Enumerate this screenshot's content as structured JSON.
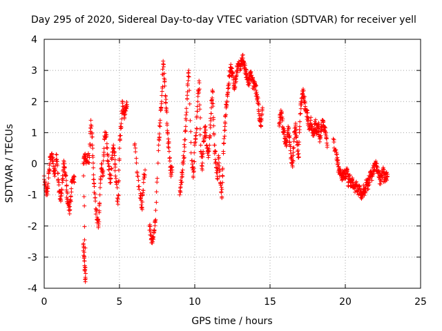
{
  "chart_data": {
    "type": "scatter",
    "title": "Day 295 of 2020, Sidereal Day-to-day VTEC variation (SDTVAR) for receiver yell",
    "xlabel": "GPS time / hours",
    "ylabel": "SDTVAR / TECUs",
    "xlim": [
      0,
      25
    ],
    "ylim": [
      -4,
      4
    ],
    "grid": true,
    "marker": "+",
    "marker_color": "#ff0000",
    "x_ticks": [
      0,
      5,
      10,
      15,
      20,
      25
    ],
    "x_tick_labels": [
      "0",
      "5",
      "10",
      "15",
      "20",
      "25"
    ],
    "y_ticks": [
      -4,
      -3,
      -2,
      -1,
      0,
      1,
      2,
      3,
      4
    ],
    "y_tick_labels": [
      "-4",
      "-3",
      "-2",
      "-1",
      "0",
      "1",
      "2",
      "3",
      "4"
    ],
    "series": [
      {
        "name": "SDTVAR",
        "segments": [
          [
            0.0,
            -0.5
          ],
          [
            0.1,
            -0.8
          ],
          [
            0.2,
            -1.0
          ],
          [
            0.3,
            -0.3
          ],
          [
            0.4,
            0.2
          ],
          [
            0.5,
            0.3
          ],
          [
            0.6,
            0.0
          ],
          [
            0.7,
            -0.4
          ],
          [
            0.8,
            0.3
          ],
          [
            0.9,
            -0.3
          ],
          [
            1.0,
            -0.9
          ],
          [
            1.1,
            -1.2
          ],
          [
            1.2,
            -0.6
          ],
          [
            1.3,
            0.1
          ],
          [
            1.4,
            -0.3
          ],
          [
            1.5,
            -0.9
          ],
          [
            1.6,
            -1.3
          ],
          [
            1.7,
            -1.5
          ],
          [
            1.8,
            -0.8
          ],
          [
            1.9,
            -0.5
          ],
          [
            2.0,
            -0.6
          ],
          [
            2.6,
            -2.6
          ],
          [
            2.65,
            -3.0
          ],
          [
            2.7,
            -3.4
          ],
          [
            2.75,
            -3.7
          ],
          [
            2.6,
            0.0
          ],
          [
            2.7,
            0.3
          ],
          [
            2.8,
            0.1
          ],
          [
            3.0,
            0.2
          ],
          [
            3.1,
            1.4
          ],
          [
            3.2,
            0.6
          ],
          [
            3.3,
            -0.5
          ],
          [
            3.4,
            -1.2
          ],
          [
            3.5,
            -1.8
          ],
          [
            3.6,
            -2.0
          ],
          [
            3.7,
            -1.0
          ],
          [
            3.8,
            0.0
          ],
          [
            3.9,
            -0.4
          ],
          [
            4.0,
            0.8
          ],
          [
            4.1,
            1.0
          ],
          [
            4.2,
            0.3
          ],
          [
            4.3,
            -0.2
          ],
          [
            4.4,
            -0.6
          ],
          [
            4.5,
            0.2
          ],
          [
            4.6,
            0.6
          ],
          [
            4.7,
            0.0
          ],
          [
            4.8,
            -0.6
          ],
          [
            4.9,
            -1.3
          ],
          [
            5.0,
            0.5
          ],
          [
            5.1,
            1.2
          ],
          [
            5.2,
            2.0
          ],
          [
            5.3,
            1.6
          ],
          [
            5.4,
            1.7
          ],
          [
            5.5,
            1.9
          ],
          [
            6.0,
            0.6
          ],
          [
            6.2,
            -0.4
          ],
          [
            6.4,
            -1.1
          ],
          [
            6.5,
            -1.4
          ],
          [
            6.6,
            -0.6
          ],
          [
            6.7,
            -0.2
          ],
          [
            7.0,
            -2.0
          ],
          [
            7.1,
            -2.3
          ],
          [
            7.2,
            -2.5
          ],
          [
            7.3,
            -2.2
          ],
          [
            7.4,
            -1.8
          ],
          [
            7.6,
            0.6
          ],
          [
            7.7,
            1.4
          ],
          [
            7.8,
            2.0
          ],
          [
            7.9,
            3.3
          ],
          [
            8.0,
            2.7
          ],
          [
            8.1,
            1.8
          ],
          [
            8.2,
            1.0
          ],
          [
            8.3,
            0.4
          ],
          [
            8.4,
            -0.3
          ],
          [
            8.5,
            -0.2
          ],
          [
            9.0,
            -1.0
          ],
          [
            9.1,
            -0.6
          ],
          [
            9.2,
            -0.2
          ],
          [
            9.3,
            0.4
          ],
          [
            9.4,
            1.2
          ],
          [
            9.5,
            2.2
          ],
          [
            9.6,
            3.0
          ],
          [
            9.8,
            0.1
          ],
          [
            9.9,
            -0.4
          ],
          [
            10.0,
            0.6
          ],
          [
            10.1,
            1.0
          ],
          [
            10.2,
            2.0
          ],
          [
            10.3,
            2.6
          ],
          [
            10.4,
            0.4
          ],
          [
            10.5,
            -0.2
          ],
          [
            10.6,
            0.8
          ],
          [
            10.7,
            1.2
          ],
          [
            10.8,
            0.6
          ],
          [
            10.9,
            0.2
          ],
          [
            11.0,
            0.9
          ],
          [
            11.1,
            1.8
          ],
          [
            11.2,
            2.3
          ],
          [
            11.3,
            0.6
          ],
          [
            11.4,
            0.0
          ],
          [
            11.5,
            -0.4
          ],
          [
            11.6,
            0.2
          ],
          [
            11.7,
            -0.6
          ],
          [
            11.8,
            -1.1
          ],
          [
            11.9,
            0.4
          ],
          [
            12.0,
            1.2
          ],
          [
            12.1,
            1.9
          ],
          [
            12.2,
            2.3
          ],
          [
            12.3,
            2.8
          ],
          [
            12.4,
            3.1
          ],
          [
            12.5,
            2.9
          ],
          [
            12.6,
            2.5
          ],
          [
            12.7,
            2.6
          ],
          [
            12.8,
            3.0
          ],
          [
            12.9,
            3.2
          ],
          [
            13.0,
            3.0
          ],
          [
            13.1,
            3.3
          ],
          [
            13.2,
            3.4
          ],
          [
            13.3,
            3.1
          ],
          [
            13.4,
            2.9
          ],
          [
            13.5,
            2.7
          ],
          [
            13.6,
            2.6
          ],
          [
            13.7,
            2.9
          ],
          [
            13.8,
            2.7
          ],
          [
            13.9,
            2.5
          ],
          [
            14.0,
            2.6
          ],
          [
            14.1,
            2.3
          ],
          [
            14.2,
            2.0
          ],
          [
            14.3,
            1.4
          ],
          [
            14.4,
            1.2
          ],
          [
            14.5,
            1.8
          ],
          [
            15.6,
            1.3
          ],
          [
            15.7,
            1.6
          ],
          [
            15.8,
            1.5
          ],
          [
            15.9,
            1.0
          ],
          [
            16.0,
            0.8
          ],
          [
            16.1,
            0.6
          ],
          [
            16.2,
            1.2
          ],
          [
            16.3,
            0.7
          ],
          [
            16.4,
            0.2
          ],
          [
            16.5,
            -0.1
          ],
          [
            16.6,
            0.8
          ],
          [
            16.7,
            1.3
          ],
          [
            16.8,
            0.6
          ],
          [
            16.9,
            0.2
          ],
          [
            17.0,
            1.6
          ],
          [
            17.1,
            2.1
          ],
          [
            17.2,
            2.4
          ],
          [
            17.3,
            2.0
          ],
          [
            17.4,
            1.7
          ],
          [
            17.5,
            1.5
          ],
          [
            17.6,
            1.2
          ],
          [
            17.7,
            1.4
          ],
          [
            17.8,
            1.1
          ],
          [
            17.9,
            0.9
          ],
          [
            18.0,
            1.3
          ],
          [
            18.1,
            1.0
          ],
          [
            18.2,
            1.2
          ],
          [
            18.3,
            0.8
          ],
          [
            18.4,
            1.1
          ],
          [
            18.5,
            1.4
          ],
          [
            18.6,
            1.2
          ],
          [
            18.7,
            1.0
          ],
          [
            18.8,
            0.6
          ],
          [
            19.2,
            0.8
          ],
          [
            19.4,
            0.3
          ],
          [
            19.5,
            0.0
          ],
          [
            19.6,
            -0.2
          ],
          [
            19.7,
            -0.3
          ],
          [
            19.8,
            -0.5
          ],
          [
            19.9,
            -0.3
          ],
          [
            20.0,
            -0.4
          ],
          [
            20.1,
            -0.2
          ],
          [
            20.2,
            -0.6
          ],
          [
            20.3,
            -0.5
          ],
          [
            20.4,
            -0.7
          ],
          [
            20.5,
            -0.6
          ],
          [
            20.6,
            -0.8
          ],
          [
            20.7,
            -0.7
          ],
          [
            20.8,
            -0.9
          ],
          [
            20.9,
            -0.8
          ],
          [
            21.0,
            -0.9
          ],
          [
            21.1,
            -1.0
          ],
          [
            21.2,
            -0.8
          ],
          [
            21.3,
            -0.9
          ],
          [
            21.4,
            -0.6
          ],
          [
            21.5,
            -0.7
          ],
          [
            21.6,
            -0.5
          ],
          [
            21.7,
            -0.3
          ],
          [
            21.8,
            -0.4
          ],
          [
            21.9,
            -0.1
          ],
          [
            22.0,
            0.0
          ],
          [
            22.1,
            -0.1
          ],
          [
            22.2,
            -0.3
          ],
          [
            22.3,
            -0.5
          ],
          [
            22.4,
            -0.4
          ],
          [
            22.5,
            -0.2
          ],
          [
            22.6,
            -0.5
          ],
          [
            22.7,
            -0.3
          ],
          [
            22.8,
            -0.4
          ]
        ]
      }
    ]
  }
}
